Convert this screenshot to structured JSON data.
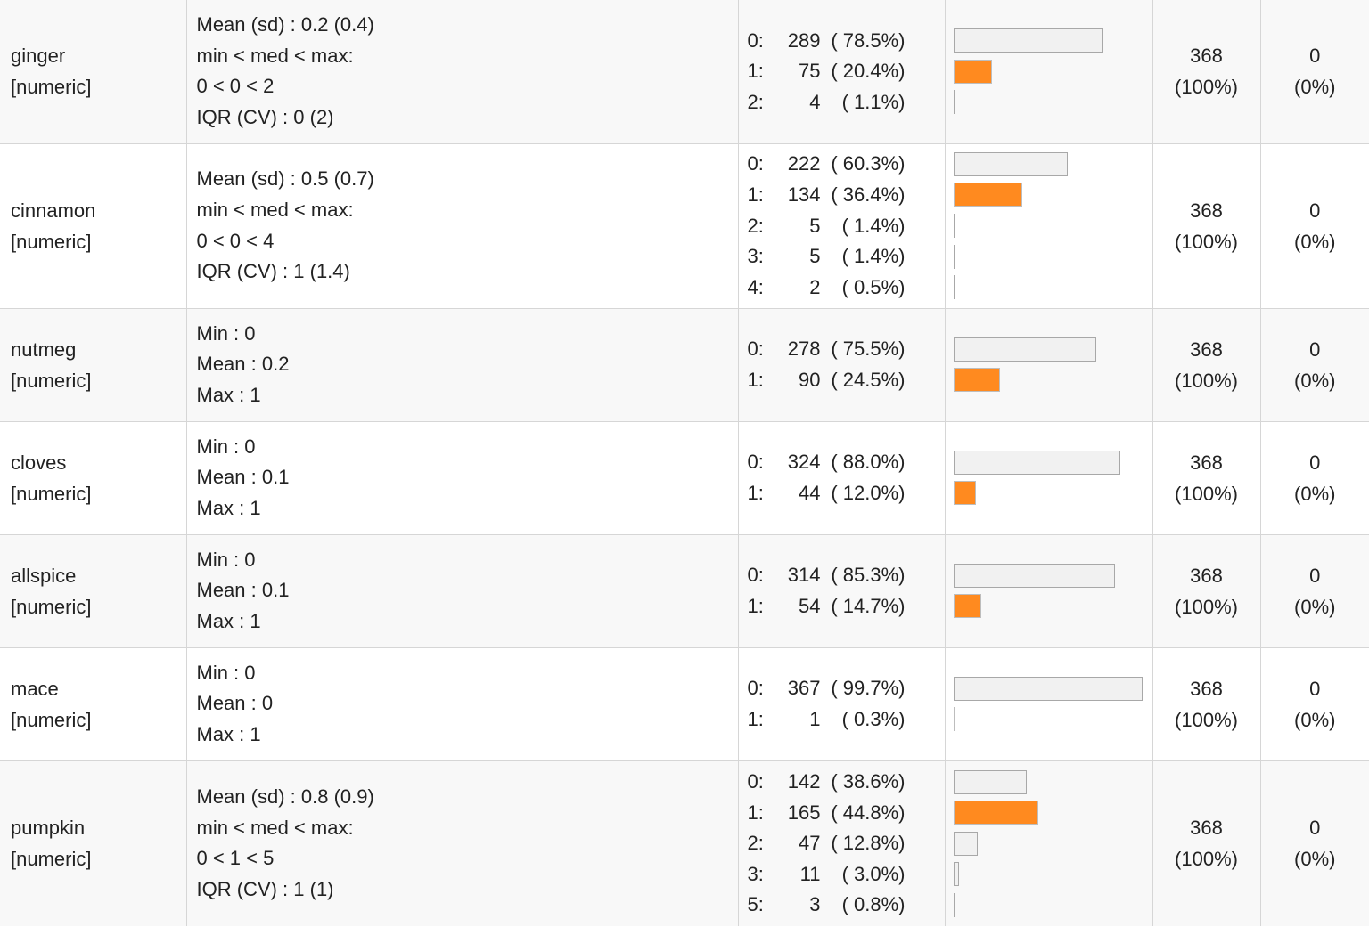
{
  "colors": {
    "bar_fill": "#f1f1f1",
    "bar_highlight": "#ff8a1f",
    "bar_border": "#a8a8a8"
  },
  "rows": [
    {
      "name": "ginger",
      "type": "[numeric]",
      "stats": [
        "Mean (sd) : 0.2 (0.4)",
        "min < med < max:",
        "0 < 0 < 2",
        "IQR (CV) : 0 (2)"
      ],
      "freqs": [
        {
          "value": "0:",
          "count": "289",
          "pct": "( 78.5%)",
          "share": 78.5,
          "highlight": false
        },
        {
          "value": "1:",
          "count": "75",
          "pct": "( 20.4%)",
          "share": 20.4,
          "highlight": true
        },
        {
          "value": "2:",
          "count": "4",
          "pct": "(   1.1%)",
          "share": 1.1,
          "highlight": false
        }
      ],
      "valid": [
        "368",
        "(100%)"
      ],
      "missing": [
        "0",
        "(0%)"
      ]
    },
    {
      "name": "cinnamon",
      "type": "[numeric]",
      "stats": [
        "Mean (sd) : 0.5 (0.7)",
        "min < med < max:",
        "0 < 0 < 4",
        "IQR (CV) : 1 (1.4)"
      ],
      "freqs": [
        {
          "value": "0:",
          "count": "222",
          "pct": "( 60.3%)",
          "share": 60.3,
          "highlight": false
        },
        {
          "value": "1:",
          "count": "134",
          "pct": "( 36.4%)",
          "share": 36.4,
          "highlight": true
        },
        {
          "value": "2:",
          "count": "5",
          "pct": "(   1.4%)",
          "share": 1.4,
          "highlight": false
        },
        {
          "value": "3:",
          "count": "5",
          "pct": "(   1.4%)",
          "share": 1.4,
          "highlight": false
        },
        {
          "value": "4:",
          "count": "2",
          "pct": "(   0.5%)",
          "share": 0.5,
          "highlight": false
        }
      ],
      "valid": [
        "368",
        "(100%)"
      ],
      "missing": [
        "0",
        "(0%)"
      ]
    },
    {
      "name": "nutmeg",
      "type": "[numeric]",
      "stats": [
        "Min : 0",
        "Mean : 0.2",
        "Max : 1"
      ],
      "freqs": [
        {
          "value": "0:",
          "count": "278",
          "pct": "( 75.5%)",
          "share": 75.5,
          "highlight": false
        },
        {
          "value": "1:",
          "count": "90",
          "pct": "( 24.5%)",
          "share": 24.5,
          "highlight": true
        }
      ],
      "valid": [
        "368",
        "(100%)"
      ],
      "missing": [
        "0",
        "(0%)"
      ]
    },
    {
      "name": "cloves",
      "type": "[numeric]",
      "stats": [
        "Min : 0",
        "Mean : 0.1",
        "Max : 1"
      ],
      "freqs": [
        {
          "value": "0:",
          "count": "324",
          "pct": "( 88.0%)",
          "share": 88.0,
          "highlight": false
        },
        {
          "value": "1:",
          "count": "44",
          "pct": "( 12.0%)",
          "share": 12.0,
          "highlight": true
        }
      ],
      "valid": [
        "368",
        "(100%)"
      ],
      "missing": [
        "0",
        "(0%)"
      ]
    },
    {
      "name": "allspice",
      "type": "[numeric]",
      "stats": [
        "Min : 0",
        "Mean : 0.1",
        "Max : 1"
      ],
      "freqs": [
        {
          "value": "0:",
          "count": "314",
          "pct": "( 85.3%)",
          "share": 85.3,
          "highlight": false
        },
        {
          "value": "1:",
          "count": "54",
          "pct": "( 14.7%)",
          "share": 14.7,
          "highlight": true
        }
      ],
      "valid": [
        "368",
        "(100%)"
      ],
      "missing": [
        "0",
        "(0%)"
      ]
    },
    {
      "name": "mace",
      "type": "[numeric]",
      "stats": [
        "Min : 0",
        "Mean : 0",
        "Max : 1"
      ],
      "freqs": [
        {
          "value": "0:",
          "count": "367",
          "pct": "( 99.7%)",
          "share": 99.7,
          "highlight": false
        },
        {
          "value": "1:",
          "count": "1",
          "pct": "(   0.3%)",
          "share": 0.3,
          "highlight": true
        }
      ],
      "valid": [
        "368",
        "(100%)"
      ],
      "missing": [
        "0",
        "(0%)"
      ]
    },
    {
      "name": "pumpkin",
      "type": "[numeric]",
      "stats": [
        "Mean (sd) : 0.8 (0.9)",
        "min < med < max:",
        "0 < 1 < 5",
        "IQR (CV) : 1 (1)"
      ],
      "freqs": [
        {
          "value": "0:",
          "count": "142",
          "pct": "( 38.6%)",
          "share": 38.6,
          "highlight": false
        },
        {
          "value": "1:",
          "count": "165",
          "pct": "( 44.8%)",
          "share": 44.8,
          "highlight": true
        },
        {
          "value": "2:",
          "count": "47",
          "pct": "( 12.8%)",
          "share": 12.8,
          "highlight": false
        },
        {
          "value": "3:",
          "count": "11",
          "pct": "(   3.0%)",
          "share": 3.0,
          "highlight": false
        },
        {
          "value": "5:",
          "count": "3",
          "pct": "(   0.8%)",
          "share": 0.8,
          "highlight": false
        }
      ],
      "valid": [
        "368",
        "(100%)"
      ],
      "missing": [
        "0",
        "(0%)"
      ]
    }
  ]
}
